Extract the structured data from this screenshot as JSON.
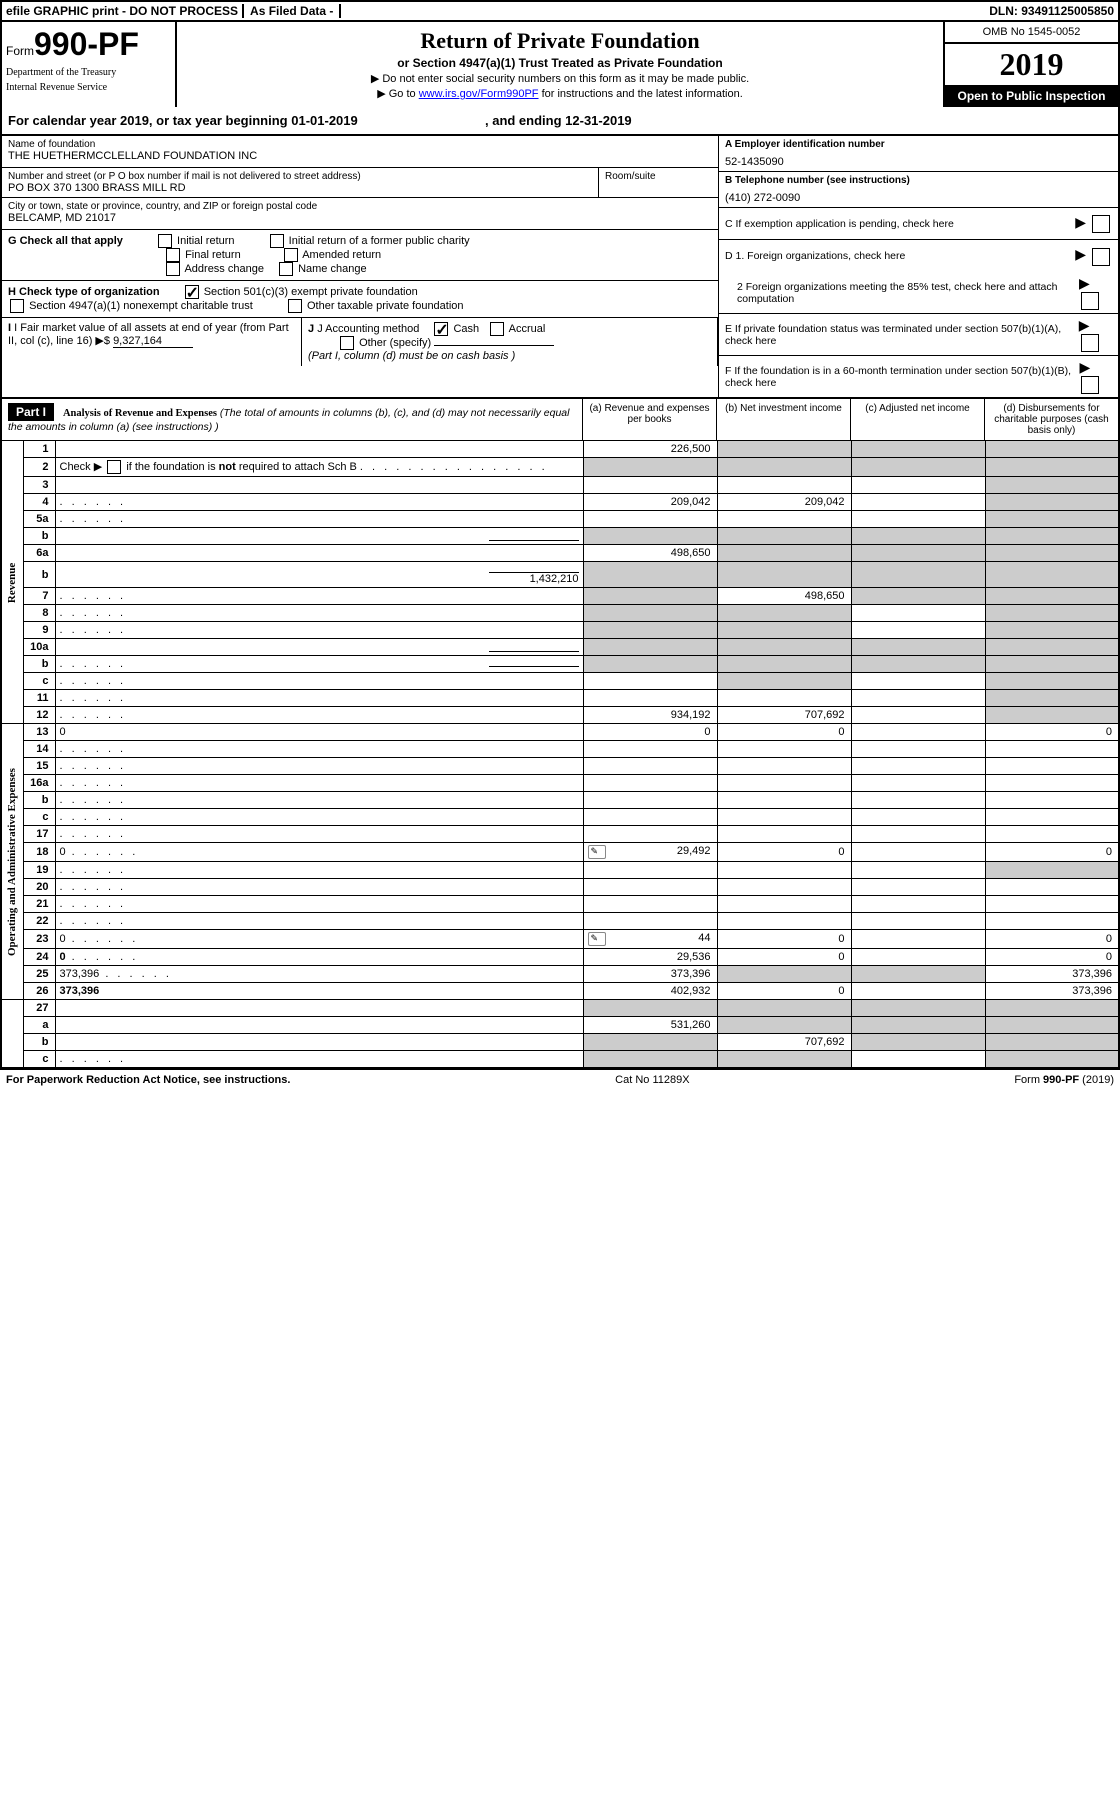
{
  "topbar": {
    "left": "efile GRAPHIC print - DO NOT PROCESS",
    "mid": "As Filed Data -",
    "right": "DLN: 93491125005850"
  },
  "form": {
    "prefix": "Form",
    "number": "990-PF",
    "dept1": "Department of the Treasury",
    "dept2": "Internal Revenue Service",
    "title": "Return of Private Foundation",
    "subtitle": "or Section 4947(a)(1) Trust Treated as Private Foundation",
    "note1": "▶ Do not enter social security numbers on this form as it may be made public.",
    "note2_prefix": "▶ Go to ",
    "note2_link": "www.irs.gov/Form990PF",
    "note2_suffix": " for instructions and the latest information.",
    "omb": "OMB No 1545-0052",
    "year": "2019",
    "open": "Open to Public Inspection"
  },
  "calyear": {
    "prefix": "For calendar year 2019, or tax year beginning ",
    "begin": "01-01-2019",
    "mid": ", and ending ",
    "end": "12-31-2019"
  },
  "entity": {
    "name_label": "Name of foundation",
    "name": "THE HUETHERMCCLELLAND FOUNDATION INC",
    "addr_label": "Number and street (or P O  box number if mail is not delivered to street address)",
    "room_label": "Room/suite",
    "addr": "PO BOX 370 1300 BRASS MILL RD",
    "city_label": "City or town, state or province, country, and ZIP or foreign postal code",
    "city": "BELCAMP, MD  21017",
    "ein_label": "A Employer identification number",
    "ein": "52-1435090",
    "tel_label": "B Telephone number (see instructions)",
    "tel": "(410) 272-0090",
    "c_label": "C  If exemption application is pending, check here",
    "d1": "D 1. Foreign organizations, check here",
    "d2": "2  Foreign organizations meeting the 85% test, check here and attach computation",
    "e_label": "E  If private foundation status was terminated under section 507(b)(1)(A), check here",
    "f_label": "F  If the foundation is in a 60-month termination under section 507(b)(1)(B), check here"
  },
  "g": {
    "label": "G Check all that apply",
    "opts": [
      "Initial return",
      "Initial return of a former public charity",
      "Final return",
      "Amended return",
      "Address change",
      "Name change"
    ]
  },
  "h": {
    "label": "H Check type of organization",
    "opt1": "Section 501(c)(3) exempt private foundation",
    "opt2": "Section 4947(a)(1) nonexempt charitable trust",
    "opt3": "Other taxable private foundation"
  },
  "i": {
    "label": "I Fair market value of all assets at end of year (from Part II, col  (c), line 16) ▶$",
    "value": "9,327,164"
  },
  "j": {
    "label": "J Accounting method",
    "cash": "Cash",
    "accrual": "Accrual",
    "other": "Other (specify)",
    "note": "(Part I, column (d) must be on cash basis )"
  },
  "part1": {
    "header": "Part I",
    "title": "Analysis of Revenue and Expenses",
    "note": " (The total of amounts in columns (b), (c), and (d) may not necessarily equal the amounts in column (a) (see instructions) )",
    "col_a": "(a)   Revenue and expenses per books",
    "col_b": "(b)   Net investment income",
    "col_c": "(c)   Adjusted net income",
    "col_d": "(d)   Disbursements for charitable purposes (cash basis only)"
  },
  "side": {
    "rev": "Revenue",
    "oae": "Operating and Administrative Expenses"
  },
  "rows": [
    {
      "n": "1",
      "d": "",
      "a": "226,500",
      "b": "",
      "c": "",
      "grey_b": true,
      "grey_c": true,
      "grey_d": true
    },
    {
      "n": "2",
      "d": "",
      "dots": true,
      "a": "",
      "b": "",
      "c": "",
      "grey_a": true,
      "grey_b": true,
      "grey_c": true,
      "grey_d": true,
      "special_check": true
    },
    {
      "n": "3",
      "d": "",
      "a": "",
      "b": "",
      "c": "",
      "grey_d": true
    },
    {
      "n": "4",
      "d": "",
      "dots": true,
      "a": "209,042",
      "b": "209,042",
      "c": "",
      "grey_d": true
    },
    {
      "n": "5a",
      "d": "",
      "dots": true,
      "a": "",
      "b": "",
      "c": "",
      "grey_d": true
    },
    {
      "n": "b",
      "d": "",
      "inline_val": "",
      "a": "",
      "b": "",
      "c": "",
      "grey_a": true,
      "grey_b": true,
      "grey_c": true,
      "grey_d": true
    },
    {
      "n": "6a",
      "d": "",
      "a": "498,650",
      "b": "",
      "c": "",
      "grey_b": true,
      "grey_c": true,
      "grey_d": true
    },
    {
      "n": "b",
      "d": "",
      "inline_val": "1,432,210",
      "a": "",
      "b": "",
      "c": "",
      "grey_a": true,
      "grey_b": true,
      "grey_c": true,
      "grey_d": true
    },
    {
      "n": "7",
      "d": "",
      "dots": true,
      "a": "",
      "b": "498,650",
      "c": "",
      "grey_a": true,
      "grey_c": true,
      "grey_d": true
    },
    {
      "n": "8",
      "d": "",
      "dots": true,
      "a": "",
      "b": "",
      "c": "",
      "grey_a": true,
      "grey_b": true,
      "grey_d": true
    },
    {
      "n": "9",
      "d": "",
      "dots": true,
      "a": "",
      "b": "",
      "c": "",
      "grey_a": true,
      "grey_b": true,
      "grey_d": true
    },
    {
      "n": "10a",
      "d": "",
      "inline_val": "",
      "a": "",
      "b": "",
      "c": "",
      "grey_a": true,
      "grey_b": true,
      "grey_c": true,
      "grey_d": true
    },
    {
      "n": "b",
      "d": "",
      "dots": true,
      "inline_val": "",
      "a": "",
      "b": "",
      "c": "",
      "grey_a": true,
      "grey_b": true,
      "grey_c": true,
      "grey_d": true
    },
    {
      "n": "c",
      "d": "",
      "dots": true,
      "a": "",
      "b": "",
      "c": "",
      "grey_b": true,
      "grey_d": true
    },
    {
      "n": "11",
      "d": "",
      "dots": true,
      "a": "",
      "b": "",
      "c": "",
      "grey_d": true
    },
    {
      "n": "12",
      "d": "",
      "dots": true,
      "bold": true,
      "a": "934,192",
      "b": "707,692",
      "c": "",
      "grey_d": true
    }
  ],
  "exp_rows": [
    {
      "n": "13",
      "d": "0",
      "a": "0",
      "b": "0",
      "c": ""
    },
    {
      "n": "14",
      "d": "",
      "dots": true,
      "a": "",
      "b": "",
      "c": ""
    },
    {
      "n": "15",
      "d": "",
      "dots": true,
      "a": "",
      "b": "",
      "c": ""
    },
    {
      "n": "16a",
      "d": "",
      "dots": true,
      "a": "",
      "b": "",
      "c": ""
    },
    {
      "n": "b",
      "d": "",
      "dots": true,
      "a": "",
      "b": "",
      "c": ""
    },
    {
      "n": "c",
      "d": "",
      "dots": true,
      "a": "",
      "b": "",
      "c": ""
    },
    {
      "n": "17",
      "d": "",
      "dots": true,
      "a": "",
      "b": "",
      "c": ""
    },
    {
      "n": "18",
      "d": "0",
      "dots": true,
      "icon": true,
      "a": "29,492",
      "b": "0",
      "c": ""
    },
    {
      "n": "19",
      "d": "",
      "dots": true,
      "a": "",
      "b": "",
      "c": "",
      "grey_d": true
    },
    {
      "n": "20",
      "d": "",
      "dots": true,
      "a": "",
      "b": "",
      "c": ""
    },
    {
      "n": "21",
      "d": "",
      "dots": true,
      "a": "",
      "b": "",
      "c": ""
    },
    {
      "n": "22",
      "d": "",
      "dots": true,
      "a": "",
      "b": "",
      "c": ""
    },
    {
      "n": "23",
      "d": "0",
      "dots": true,
      "icon": true,
      "a": "44",
      "b": "0",
      "c": ""
    },
    {
      "n": "24",
      "d": "0",
      "dots": true,
      "bold": true,
      "a": "29,536",
      "b": "0",
      "c": ""
    },
    {
      "n": "25",
      "d": "373,396",
      "dots": true,
      "a": "373,396",
      "b": "",
      "c": "",
      "grey_b": true,
      "grey_c": true
    },
    {
      "n": "26",
      "d": "373,396",
      "bold": true,
      "a": "402,932",
      "b": "0",
      "c": ""
    }
  ],
  "bottom_rows": [
    {
      "n": "27",
      "d": "",
      "a": "",
      "b": "",
      "c": "",
      "grey_a": true,
      "grey_b": true,
      "grey_c": true,
      "grey_d": true
    },
    {
      "n": "a",
      "d": "",
      "bold": true,
      "a": "531,260",
      "b": "",
      "c": "",
      "grey_b": true,
      "grey_c": true,
      "grey_d": true
    },
    {
      "n": "b",
      "d": "",
      "bold": true,
      "a": "",
      "b": "707,692",
      "c": "",
      "grey_a": true,
      "grey_c": true,
      "grey_d": true
    },
    {
      "n": "c",
      "d": "",
      "bold": true,
      "dots": true,
      "a": "",
      "b": "",
      "c": "",
      "grey_a": true,
      "grey_b": true,
      "grey_d": true
    }
  ],
  "footer": {
    "left": "For Paperwork Reduction Act Notice, see instructions.",
    "mid": "Cat No 11289X",
    "right": "Form 990-PF (2019)",
    "right_bold": "990-PF"
  }
}
